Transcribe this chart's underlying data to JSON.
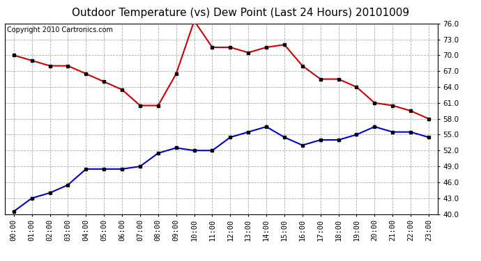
{
  "title": "Outdoor Temperature (vs) Dew Point (Last 24 Hours) 20101009",
  "copyright_text": "Copyright 2010 Cartronics.com",
  "x_labels": [
    "00:00",
    "01:00",
    "02:00",
    "03:00",
    "04:00",
    "05:00",
    "06:00",
    "07:00",
    "08:00",
    "09:00",
    "10:00",
    "11:00",
    "12:00",
    "13:00",
    "14:00",
    "15:00",
    "16:00",
    "17:00",
    "18:00",
    "19:00",
    "20:00",
    "21:00",
    "22:00",
    "23:00"
  ],
  "temp_data": [
    70.0,
    69.0,
    68.0,
    68.0,
    66.5,
    65.0,
    63.5,
    60.5,
    60.5,
    66.5,
    76.5,
    71.5,
    71.5,
    70.5,
    71.5,
    72.0,
    68.0,
    65.5,
    65.5,
    64.0,
    61.0,
    60.5,
    59.5,
    58.0
  ],
  "dew_data": [
    40.5,
    43.0,
    44.0,
    45.5,
    48.5,
    48.5,
    48.5,
    49.0,
    51.5,
    52.5,
    52.0,
    52.0,
    54.5,
    55.5,
    56.5,
    54.5,
    53.0,
    54.0,
    54.0,
    55.0,
    56.5,
    55.5,
    55.5,
    54.5
  ],
  "temp_color": "#cc0000",
  "dew_color": "#0000cc",
  "background_color": "#ffffff",
  "plot_bg_color": "#ffffff",
  "grid_color": "#aaaaaa",
  "ylim": [
    40.0,
    76.0
  ],
  "yticks": [
    40.0,
    43.0,
    46.0,
    49.0,
    52.0,
    55.0,
    58.0,
    61.0,
    64.0,
    67.0,
    70.0,
    73.0,
    76.0
  ],
  "title_fontsize": 11,
  "copyright_fontsize": 7,
  "tick_fontsize": 7.5,
  "line_width": 1.5,
  "marker": "s",
  "marker_size": 3,
  "marker_color": "#000000"
}
